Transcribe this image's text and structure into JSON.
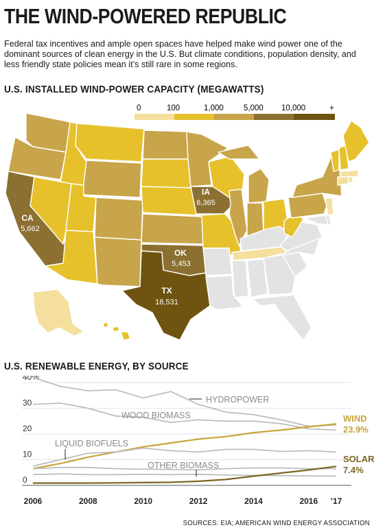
{
  "title": "THE WIND-POWERED REPUBLIC",
  "intro": "Federal tax incentives and ample open spaces have helped make wind power one of the dominant sources of clean energy in the U.S. But climate conditions, population density, and less friendly state policies mean it’s still rare in some regions.",
  "map_section": {
    "heading": "U.S. INSTALLED WIND-POWER CAPACITY (MEGAWATTS)",
    "legend": {
      "labels": [
        "0",
        "100",
        "1,000",
        "5,000",
        "10,000",
        "+"
      ],
      "colors": [
        "#f4df9e",
        "#e6c12c",
        "#c8a44a",
        "#8c7032",
        "#6e5410"
      ]
    },
    "no_data_color": "#e3e3e3",
    "labeled_states": [
      {
        "abbr": "CA",
        "value": "5,662"
      },
      {
        "abbr": "IA",
        "value": "6,365"
      },
      {
        "abbr": "OK",
        "value": "5,453"
      },
      {
        "abbr": "TX",
        "value": "18,531"
      }
    ]
  },
  "chart_section": {
    "heading": "U.S. RENEWABLE ENERGY, BY SOURCE"
  },
  "chart_data": {
    "type": "line",
    "title": "U.S. RENEWABLE ENERGY, BY SOURCE",
    "x": [
      2006,
      2007,
      2008,
      2009,
      2010,
      2011,
      2012,
      2013,
      2014,
      2015,
      2016,
      2017
    ],
    "x_tick_labels": [
      "2006",
      "2008",
      "2010",
      "2012",
      "2014",
      "2016",
      "’17"
    ],
    "y_tick_labels": [
      "40%",
      "30",
      "20",
      "10",
      "0"
    ],
    "ylim": [
      0,
      40
    ],
    "grid": true,
    "series": [
      {
        "name": "HYDROPOWER",
        "color": "#bdbdbd",
        "values": [
          42,
          38.5,
          36.8,
          37.2,
          34,
          36.5,
          31.5,
          28.5,
          27.5,
          25.5,
          23,
          23.5
        ]
      },
      {
        "name": "WOOD BIOMASS",
        "color": "#bdbdbd",
        "values": [
          31.5,
          32,
          30,
          27,
          26.5,
          24.5,
          25.5,
          25,
          25,
          24,
          22,
          21.5
        ]
      },
      {
        "name": "WIND",
        "label_value": "23.9%",
        "color": "#c9a43a",
        "values": [
          6.5,
          8.5,
          11,
          13,
          15,
          16.5,
          18,
          19,
          20.5,
          21.5,
          22.8,
          23.9
        ]
      },
      {
        "name": "LIQUID BIOFUELS",
        "color": "#bdbdbd",
        "values": [
          7.5,
          10,
          12.5,
          13,
          14.5,
          13.5,
          13,
          14,
          14,
          13.2,
          13.5,
          13
        ]
      },
      {
        "name": "OTHER BIOMASS",
        "color": "#bdbdbd",
        "values": [
          6.5,
          7,
          7,
          6.5,
          6.3,
          6.2,
          6,
          6.5,
          6.8,
          6.8,
          6.5,
          6.5
        ]
      },
      {
        "name": "",
        "color": "#bdbdbd",
        "values": [
          4.2,
          4.5,
          4.2,
          4.2,
          4.3,
          4.2,
          4.3,
          4.0,
          3.9,
          3.8,
          3.7,
          3.6
        ]
      },
      {
        "name": "SOLAR",
        "label_value": "7.4%",
        "color": "#7d6420",
        "values": [
          0.9,
          0.9,
          0.9,
          1.0,
          1.1,
          1.2,
          1.6,
          2.3,
          3.6,
          4.8,
          6.0,
          7.4
        ]
      }
    ]
  },
  "source": "SOURCES: EIA; AMERICAN WIND ENERGY ASSOCIATION"
}
